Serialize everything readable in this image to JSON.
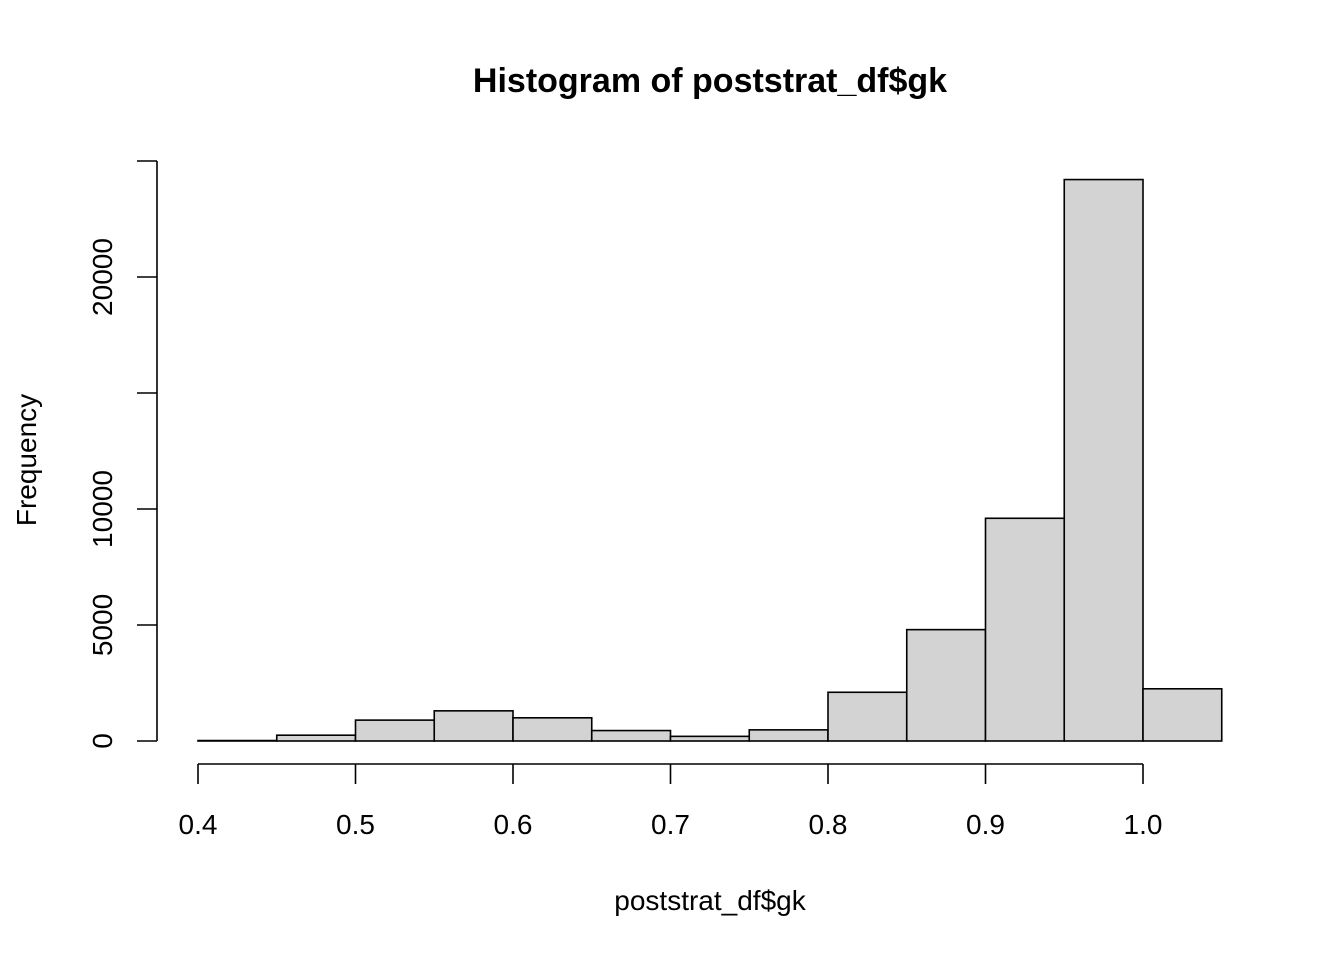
{
  "colors": {
    "bar_fill": "#d3d3d3",
    "bar_stroke": "#000000",
    "background": "#ffffff"
  },
  "chart_data": {
    "type": "bar",
    "title": "Histogram of poststrat_df$gk",
    "xlabel": "poststrat_df$gk",
    "ylabel": "Frequency",
    "bins": [
      {
        "start": 0.4,
        "end": 0.45,
        "count": 20
      },
      {
        "start": 0.45,
        "end": 0.5,
        "count": 250
      },
      {
        "start": 0.5,
        "end": 0.55,
        "count": 900
      },
      {
        "start": 0.55,
        "end": 0.6,
        "count": 1300
      },
      {
        "start": 0.6,
        "end": 0.65,
        "count": 1000
      },
      {
        "start": 0.65,
        "end": 0.7,
        "count": 450
      },
      {
        "start": 0.7,
        "end": 0.75,
        "count": 200
      },
      {
        "start": 0.75,
        "end": 0.8,
        "count": 480
      },
      {
        "start": 0.8,
        "end": 0.85,
        "count": 2100
      },
      {
        "start": 0.85,
        "end": 0.9,
        "count": 4800
      },
      {
        "start": 0.9,
        "end": 0.95,
        "count": 9600
      },
      {
        "start": 0.95,
        "end": 1.0,
        "count": 24200
      },
      {
        "start": 1.0,
        "end": 1.05,
        "count": 2250
      }
    ],
    "xlim": [
      0.4,
      1.05
    ],
    "ylim": [
      0,
      25000
    ],
    "x_ticks": [
      {
        "value": 0.4,
        "label": "0.4"
      },
      {
        "value": 0.5,
        "label": "0.5"
      },
      {
        "value": 0.6,
        "label": "0.6"
      },
      {
        "value": 0.7,
        "label": "0.7"
      },
      {
        "value": 0.8,
        "label": "0.8"
      },
      {
        "value": 0.9,
        "label": "0.9"
      },
      {
        "value": 1.0,
        "label": "1.0"
      }
    ],
    "y_ticks": [
      {
        "value": 0,
        "label": "0"
      },
      {
        "value": 5000,
        "label": "5000"
      },
      {
        "value": 10000,
        "label": "10000"
      },
      {
        "value": 15000,
        "label": ""
      },
      {
        "value": 20000,
        "label": "20000"
      },
      {
        "value": 25000,
        "label": ""
      }
    ],
    "grid": false,
    "legend": "none"
  }
}
